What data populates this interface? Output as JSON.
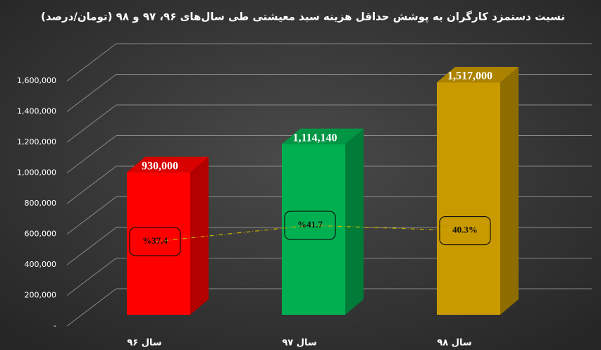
{
  "chart_data": {
    "type": "bar",
    "title": "نسبت دستمزد کارگران به پوشش حداقل هزینه سبد معیشتی طی سال‌های ۹۶، ۹۷ و ۹۸ (تومان/درصد)",
    "categories": [
      "سال ۹۶",
      "سال ۹۷",
      "سال ۹۸"
    ],
    "series": [
      {
        "values": [
          930000,
          1114140,
          1517000
        ],
        "value_labels": [
          "930,000",
          "1,114,140",
          "1,517,000"
        ],
        "colors": [
          "#ff0000",
          "#00b050",
          "#c99a00"
        ]
      },
      {
        "values": [
          37.4,
          41.7,
          40.3
        ],
        "value_labels": [
          "%37.4",
          "%41.7",
          "40.3%"
        ],
        "axis": "y2",
        "color": "#c8b400"
      }
    ],
    "ylim": [
      0,
      1600000
    ],
    "yticks": [
      {
        "value": 0,
        "label": "-"
      },
      {
        "value": 200000,
        "label": "200,000"
      },
      {
        "value": 400000,
        "label": "400,000"
      },
      {
        "value": 600000,
        "label": "600,000"
      },
      {
        "value": 800000,
        "label": "800,000"
      },
      {
        "value": 1000000,
        "label": "1,000,000"
      },
      {
        "value": 1200000,
        "label": "1,200,000"
      },
      {
        "value": 1400000,
        "label": "1,400,000"
      },
      {
        "value": 1600000,
        "label": "1,600,000"
      }
    ],
    "y2lim": [
      15,
      80
    ],
    "grid": true
  }
}
